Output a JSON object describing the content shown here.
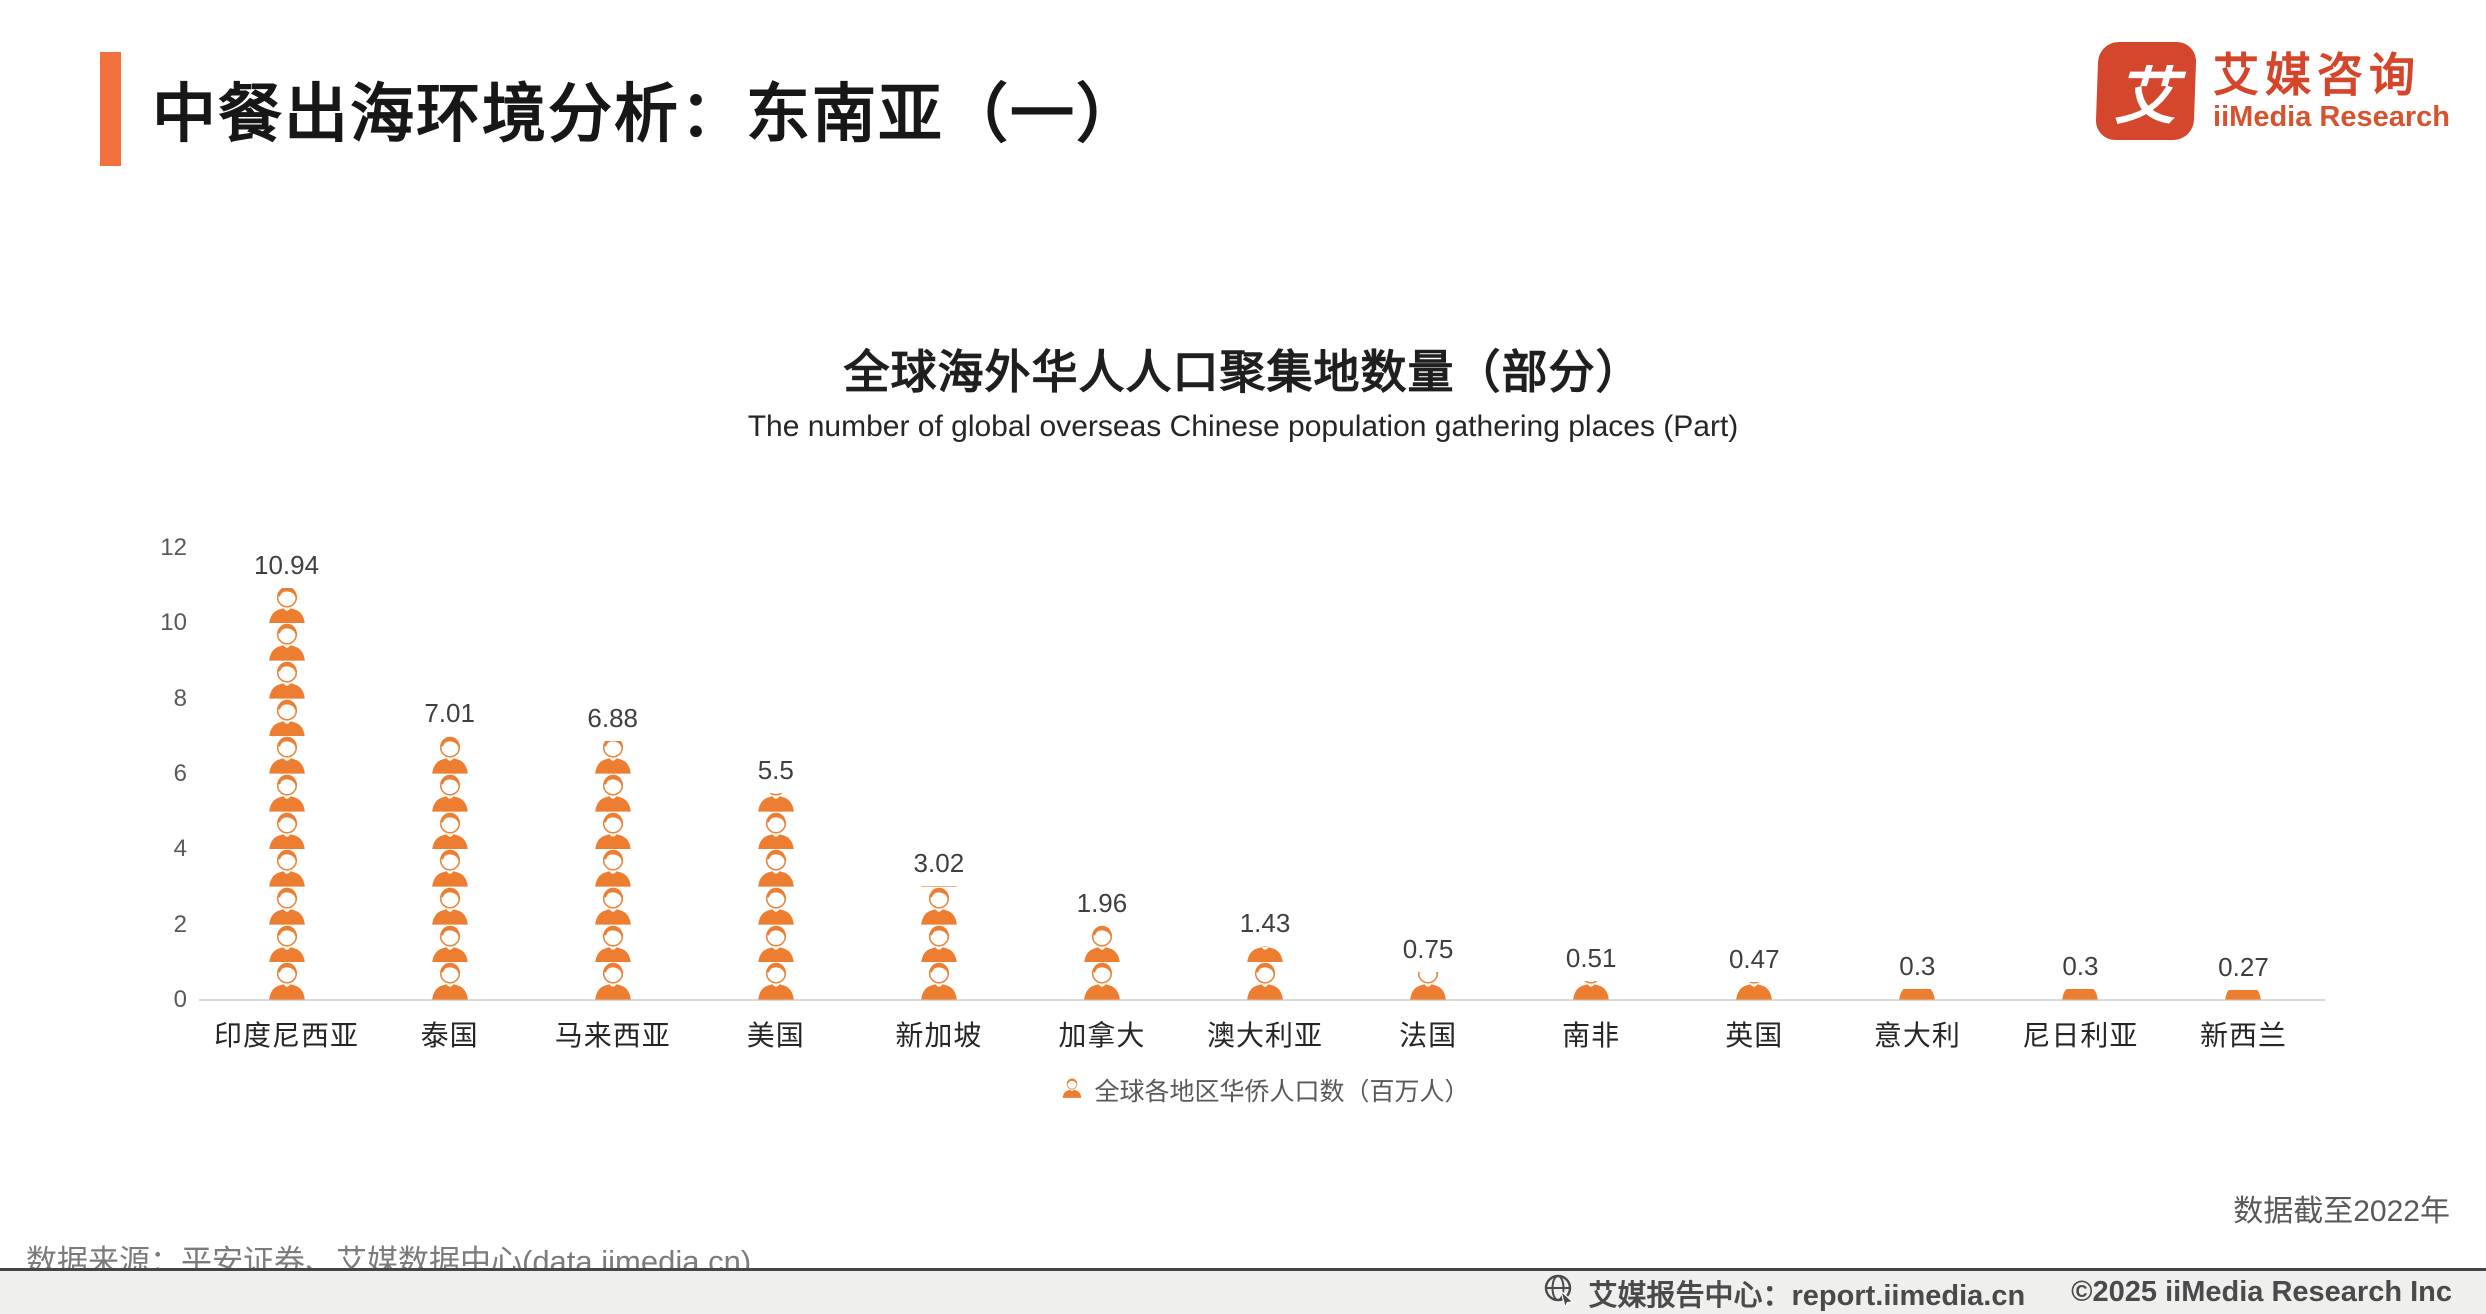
{
  "header": {
    "title": "中餐出海环境分析：东南亚（一）",
    "logo": {
      "glyph": "艾",
      "cn": "艾媒咨询",
      "en": "iiMedia Research"
    }
  },
  "chart_data": {
    "type": "bar",
    "style": "pictograph-stacked-person-icons",
    "title": "全球海外华人人口聚集地数量（部分）",
    "subtitle": "The number of global overseas Chinese population gathering places (Part)",
    "categories": [
      "印度尼西亚",
      "泰国",
      "马来西亚",
      "美国",
      "新加坡",
      "加拿大",
      "澳大利亚",
      "法国",
      "南非",
      "英国",
      "意大利",
      "尼日利亚",
      "新西兰"
    ],
    "values": [
      10.94,
      7.01,
      6.88,
      5.5,
      3.02,
      1.96,
      1.43,
      0.75,
      0.51,
      0.47,
      0.3,
      0.3,
      0.27
    ],
    "value_labels": [
      "10.94",
      "7.01",
      "6.88",
      "5.5",
      "3.02",
      "1.96",
      "1.43",
      "0.75",
      "0.51",
      "0.47",
      "0.3",
      "0.3",
      "0.27"
    ],
    "ylim": [
      0,
      12
    ],
    "yticks": [
      0,
      2,
      4,
      6,
      8,
      10,
      12
    ],
    "grid": "off",
    "legend": "全球各地区华侨人口数（百万人）",
    "legend_position": "bottom-center",
    "units_per_icon": 1
  },
  "notes": {
    "cutoff": "数据截至2022年",
    "source": "数据来源：平安证券、艾媒数据中心(data.iimedia.cn)"
  },
  "footer": {
    "report_center": "艾媒报告中心：report.iimedia.cn",
    "copyright": "©2025  iiMedia Research  Inc"
  },
  "colors": {
    "accent_orange": "#F1703B",
    "logo_red": "#D5472C",
    "icon_orange": "#ED7D31",
    "axis_line": "#D9D9D9",
    "footer_text": "#4a4a4a"
  }
}
